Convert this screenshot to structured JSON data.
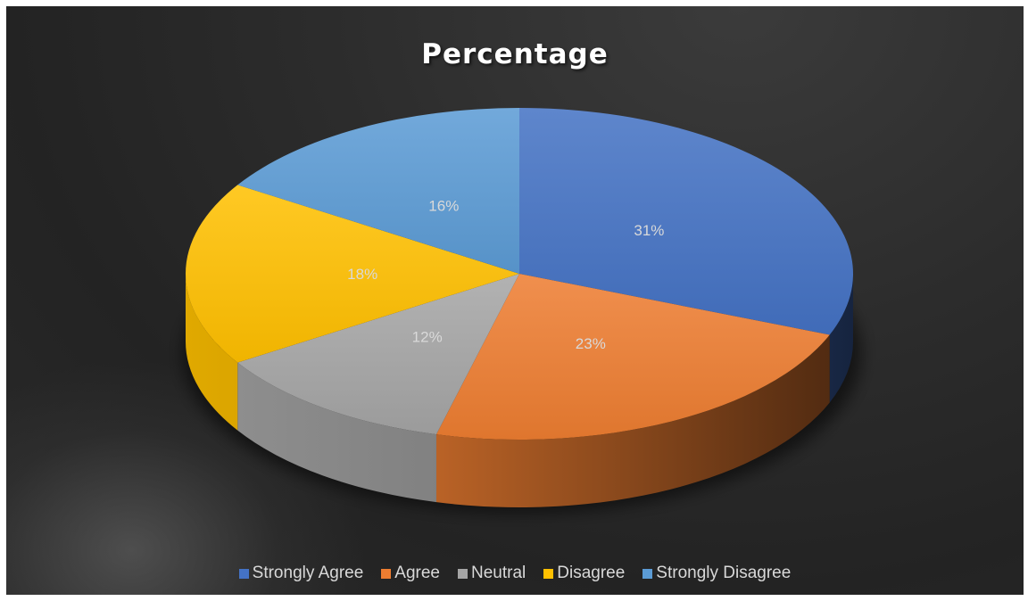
{
  "chart_data": {
    "type": "pie",
    "title": "Percentage",
    "categories": [
      "Strongly Agree",
      "Agree",
      "Neutral",
      "Disagree",
      "Strongly Disagree"
    ],
    "values": [
      31,
      23,
      12,
      18,
      16
    ],
    "data_labels": [
      "31%",
      "23%",
      "12%",
      "18%",
      "16%"
    ],
    "colors": [
      "#4472C4",
      "#ED7D31",
      "#A5A5A5",
      "#FFC000",
      "#5B9BD5"
    ],
    "style": "3d-pie",
    "legend_position": "bottom"
  }
}
